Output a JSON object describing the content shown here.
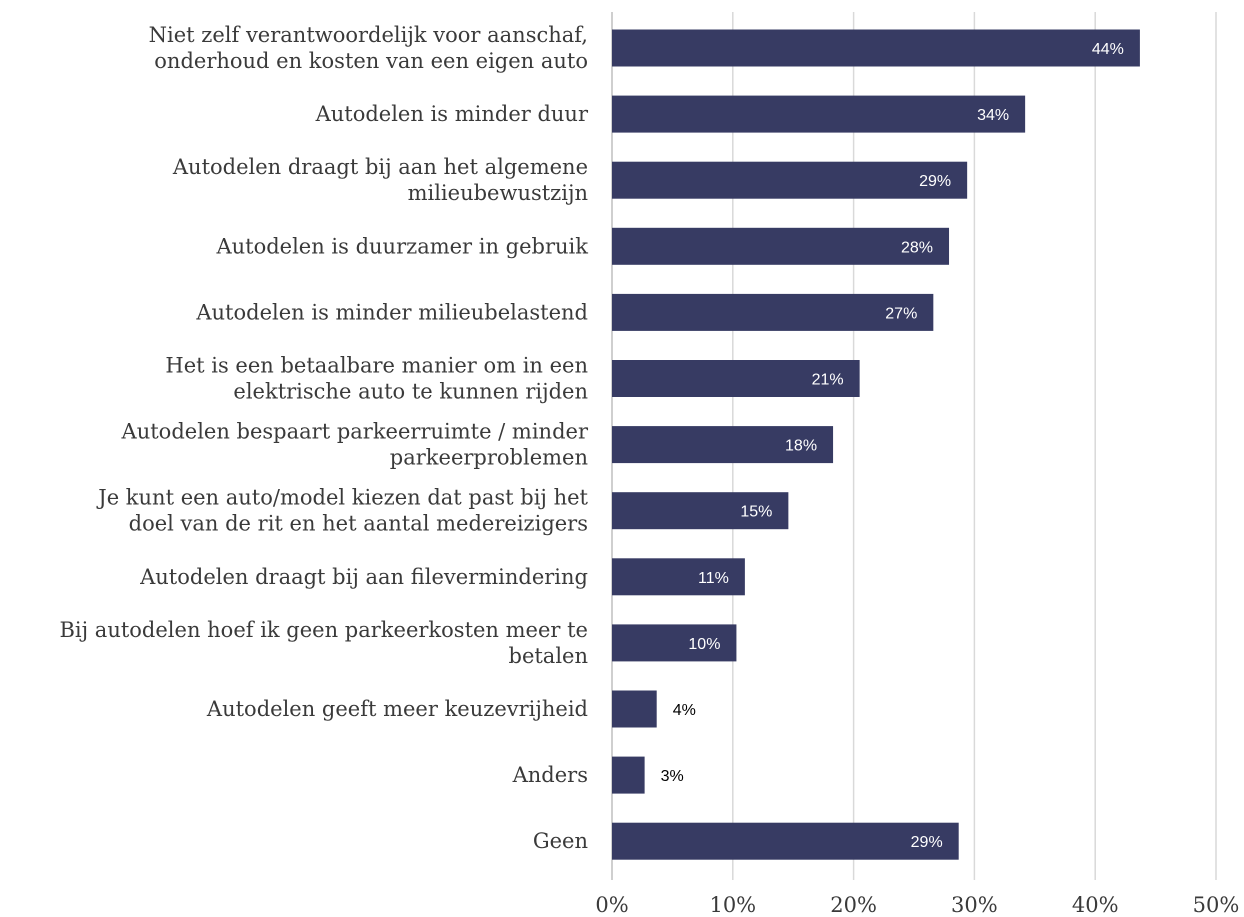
{
  "chart_data": {
    "type": "bar",
    "orientation": "horizontal",
    "categories": [
      [
        "Niet zelf verantwoordelijk voor aanschaf,",
        "onderhoud en kosten van een eigen auto"
      ],
      [
        "Autodelen is minder duur"
      ],
      [
        "Autodelen draagt bij aan het algemene",
        "milieubewustzijn"
      ],
      [
        "Autodelen is duurzamer in gebruik"
      ],
      [
        "Autodelen is minder milieubelastend"
      ],
      [
        "Het is een betaalbare manier om in een",
        "elektrische auto te kunnen rijden"
      ],
      [
        "Autodelen bespaart parkeerruimte / minder",
        "parkeerproblemen"
      ],
      [
        "Je kunt een auto/model kiezen dat past bij het",
        "doel van de rit en het aantal medereizigers"
      ],
      [
        "Autodelen draagt bij aan filevermindering"
      ],
      [
        "Bij autodelen hoef ik geen parkeerkosten meer te",
        "betalen"
      ],
      [
        "Autodelen geeft meer keuzevrijheid"
      ],
      [
        "Anders"
      ],
      [
        "Geen"
      ]
    ],
    "values": [
      43.7,
      34.2,
      29.4,
      27.9,
      26.6,
      20.5,
      18.3,
      14.6,
      11.0,
      10.3,
      3.7,
      2.7,
      28.7
    ],
    "data_labels": [
      "44%",
      "34%",
      "29%",
      "28%",
      "27%",
      "21%",
      "18%",
      "15%",
      "11%",
      "10%",
      "4%",
      "3%",
      "29%"
    ],
    "xlim": [
      0,
      50
    ],
    "xticks": [
      0,
      10,
      20,
      30,
      40,
      50
    ],
    "xtick_labels": [
      "0%",
      "10%",
      "20%",
      "30%",
      "40%",
      "50%"
    ],
    "grid": "vertical",
    "legend": "none",
    "colors": {
      "bar": "#373b63",
      "grid": "#d9d9d9",
      "axis": "#bfbfbf"
    }
  }
}
